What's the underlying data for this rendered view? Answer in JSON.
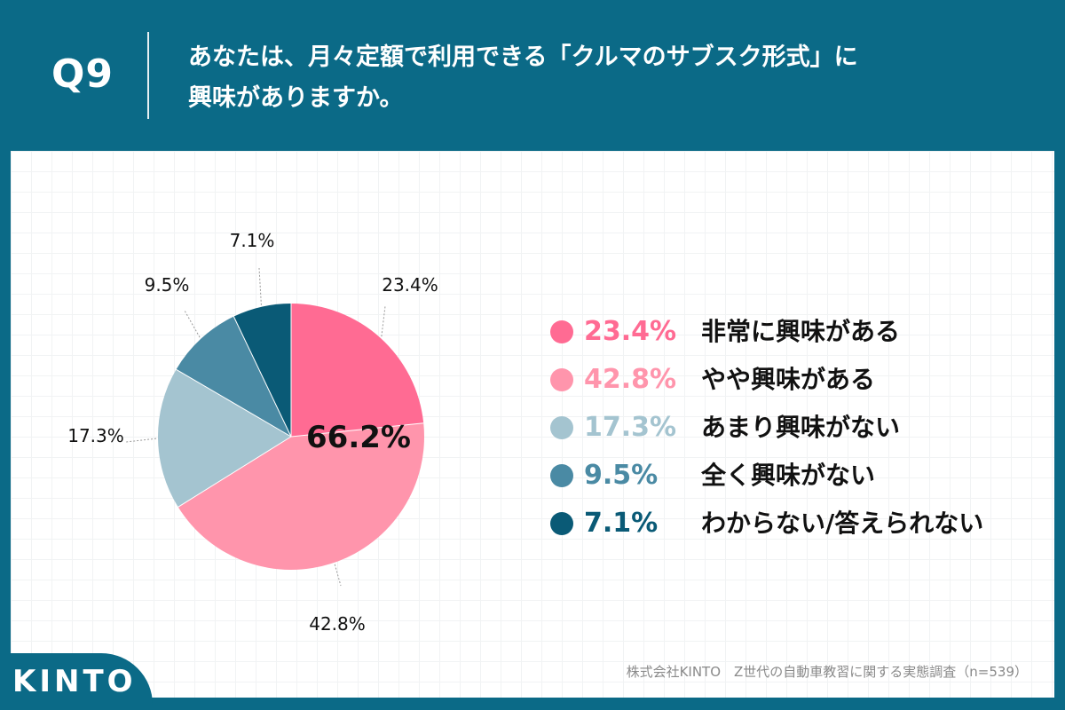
{
  "header": {
    "question_number": "Q9",
    "question_line1": "あなたは、月々定額で利用できる「クルマのサブスク形式」に",
    "question_line2": "興味がありますか。"
  },
  "chart_data": {
    "type": "pie",
    "center_label": "66.2%",
    "categories": [
      "非常に興味がある",
      "やや興味がある",
      "あまり興味がない",
      "全く興味がない",
      "わからない/答えられない"
    ],
    "values": [
      23.4,
      42.8,
      17.3,
      9.5,
      7.1
    ],
    "value_labels": [
      "23.4%",
      "42.8%",
      "17.3%",
      "9.5%",
      "7.1%"
    ],
    "colors": [
      "#ff6b93",
      "#ff95ac",
      "#a4c4d0",
      "#4a8aa4",
      "#0a5a76"
    ],
    "legend_placement": "right"
  },
  "legend": [
    {
      "pct": "23.4%",
      "label": "非常に興味がある",
      "color": "#ff6b93"
    },
    {
      "pct": "42.8%",
      "label": "やや興味がある",
      "color": "#ff95ac"
    },
    {
      "pct": "17.3%",
      "label": "あまり興味がない",
      "color": "#a4c4d0"
    },
    {
      "pct": "9.5%",
      "label": "全く興味がない",
      "color": "#4a8aa4"
    },
    {
      "pct": "7.1%",
      "label": "わからない/答えられない",
      "color": "#0a5a76"
    }
  ],
  "footer": {
    "source": "株式会社KINTO　Z世代の自動車教習に関する実態調査（n=539）",
    "logo": "KINTO"
  }
}
